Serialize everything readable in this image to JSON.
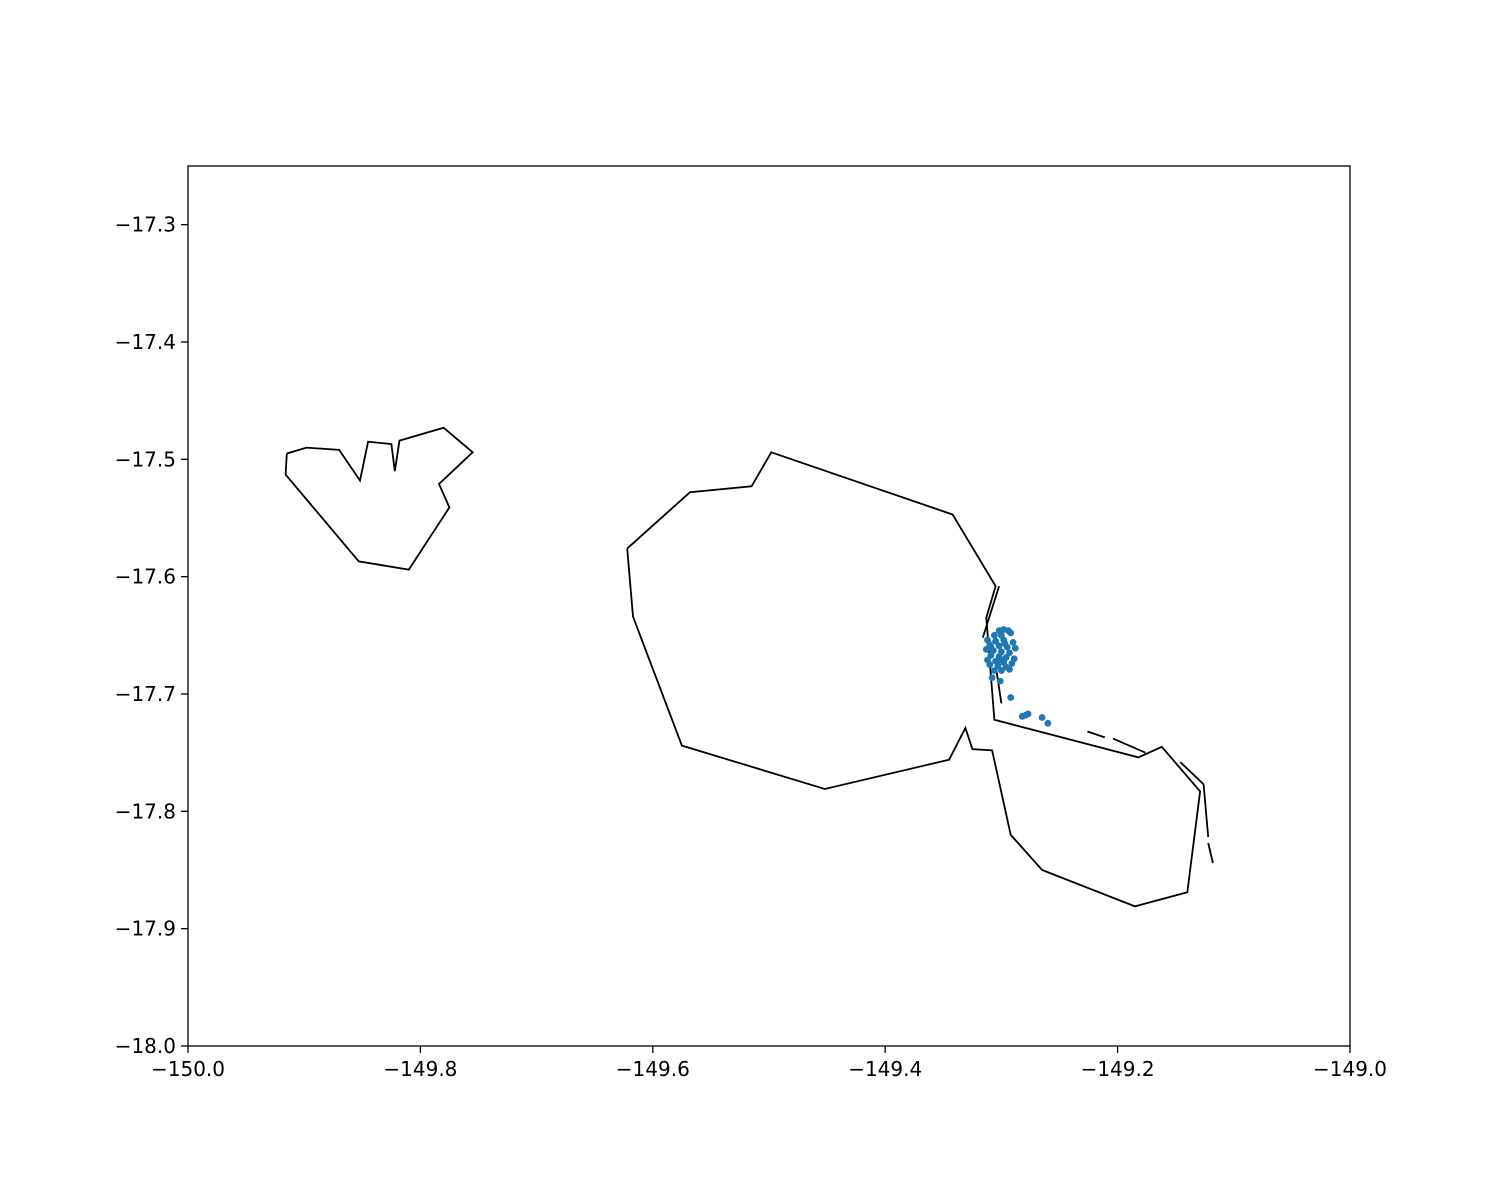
{
  "chart_data": {
    "type": "scatter",
    "title": "",
    "xlabel": "",
    "ylabel": "",
    "xlim": [
      -150.0,
      -149.0
    ],
    "ylim": [
      -18.0,
      -17.25
    ],
    "grid": false,
    "x_ticks": [
      -150.0,
      -149.8,
      -149.6,
      -149.4,
      -149.2,
      -149.0
    ],
    "x_tick_labels": [
      "−150.0",
      "−149.8",
      "−149.6",
      "−149.4",
      "−149.2",
      "−149.0"
    ],
    "y_ticks": [
      -17.3,
      -17.4,
      -17.5,
      -17.6,
      -17.7,
      -17.8,
      -17.9,
      -18.0
    ],
    "y_tick_labels": [
      "−17.3",
      "−17.4",
      "−17.5",
      "−17.6",
      "−17.7",
      "−17.8",
      "−17.9",
      "−18.0"
    ],
    "outline_color": "#000000",
    "point_color": "#1f77b4",
    "outlines": [
      {
        "points": [
          [
            -149.915,
            -17.495
          ],
          [
            -149.898,
            -17.49
          ],
          [
            -149.87,
            -17.492
          ],
          [
            -149.852,
            -17.518
          ],
          [
            -149.845,
            -17.485
          ],
          [
            -149.825,
            -17.487
          ],
          [
            -149.822,
            -17.51
          ],
          [
            -149.818,
            -17.484
          ],
          [
            -149.78,
            -17.473
          ],
          [
            -149.755,
            -17.494
          ],
          [
            -149.784,
            -17.521
          ],
          [
            -149.775,
            -17.541
          ],
          [
            -149.81,
            -17.594
          ],
          [
            -149.853,
            -17.587
          ],
          [
            -149.916,
            -17.513
          ],
          [
            -149.915,
            -17.495
          ]
        ]
      },
      {
        "points": [
          [
            -149.622,
            -17.576
          ],
          [
            -149.568,
            -17.528
          ],
          [
            -149.515,
            -17.523
          ],
          [
            -149.498,
            -17.494
          ],
          [
            -149.342,
            -17.547
          ],
          [
            -149.305,
            -17.608
          ],
          [
            -149.313,
            -17.635
          ],
          [
            -149.306,
            -17.722
          ],
          [
            -149.182,
            -17.754
          ],
          [
            -149.162,
            -17.745
          ],
          [
            -149.129,
            -17.783
          ],
          [
            -149.14,
            -17.869
          ],
          [
            -149.185,
            -17.881
          ],
          [
            -149.265,
            -17.85
          ],
          [
            -149.292,
            -17.82
          ],
          [
            -149.308,
            -17.748
          ],
          [
            -149.325,
            -17.747
          ],
          [
            -149.331,
            -17.729
          ],
          [
            -149.345,
            -17.756
          ],
          [
            -149.452,
            -17.781
          ],
          [
            -149.575,
            -17.744
          ],
          [
            -149.617,
            -17.634
          ],
          [
            -149.622,
            -17.576
          ]
        ]
      },
      {
        "points": [
          [
            -149.302,
            -17.608
          ],
          [
            -149.316,
            -17.652
          ]
        ]
      },
      {
        "points": [
          [
            -149.305,
            -17.675
          ],
          [
            -149.3,
            -17.708
          ]
        ]
      },
      {
        "points": [
          [
            -149.226,
            -17.732
          ],
          [
            -149.211,
            -17.737
          ]
        ]
      },
      {
        "points": [
          [
            -149.204,
            -17.738
          ],
          [
            -149.176,
            -17.75
          ]
        ]
      },
      {
        "points": [
          [
            -149.146,
            -17.758
          ],
          [
            -149.126,
            -17.777
          ]
        ]
      },
      {
        "points": [
          [
            -149.126,
            -17.777
          ],
          [
            -149.122,
            -17.822
          ]
        ]
      },
      {
        "points": [
          [
            -149.122,
            -17.827
          ],
          [
            -149.118,
            -17.844
          ]
        ]
      }
    ],
    "points": [
      [
        -149.302,
        -17.646
      ],
      [
        -149.298,
        -17.645
      ],
      [
        -149.294,
        -17.646
      ],
      [
        -149.306,
        -17.65
      ],
      [
        -149.3,
        -17.65
      ],
      [
        -149.292,
        -17.648
      ],
      [
        -149.312,
        -17.654
      ],
      [
        -149.305,
        -17.655
      ],
      [
        -149.298,
        -17.654
      ],
      [
        -149.29,
        -17.656
      ],
      [
        -149.31,
        -17.658
      ],
      [
        -149.302,
        -17.659
      ],
      [
        -149.295,
        -17.66
      ],
      [
        -149.288,
        -17.661
      ],
      [
        -149.313,
        -17.662
      ],
      [
        -149.307,
        -17.663
      ],
      [
        -149.3,
        -17.664
      ],
      [
        -149.293,
        -17.665
      ],
      [
        -149.309,
        -17.667
      ],
      [
        -149.302,
        -17.668
      ],
      [
        -149.296,
        -17.669
      ],
      [
        -149.289,
        -17.67
      ],
      [
        -149.312,
        -17.671
      ],
      [
        -149.305,
        -17.672
      ],
      [
        -149.298,
        -17.673
      ],
      [
        -149.291,
        -17.674
      ],
      [
        -149.31,
        -17.675
      ],
      [
        -149.303,
        -17.676
      ],
      [
        -149.296,
        -17.677
      ],
      [
        -149.306,
        -17.68
      ],
      [
        -149.3,
        -17.68
      ],
      [
        -149.293,
        -17.679
      ],
      [
        -149.309,
        -17.66
      ],
      [
        -149.297,
        -17.657
      ],
      [
        -149.301,
        -17.671
      ],
      [
        -149.308,
        -17.686
      ],
      [
        -149.301,
        -17.689
      ],
      [
        -149.292,
        -17.703
      ],
      [
        -149.282,
        -17.719
      ],
      [
        -149.279,
        -17.718
      ],
      [
        -149.277,
        -17.717
      ],
      [
        -149.265,
        -17.72
      ],
      [
        -149.26,
        -17.725
      ]
    ]
  }
}
